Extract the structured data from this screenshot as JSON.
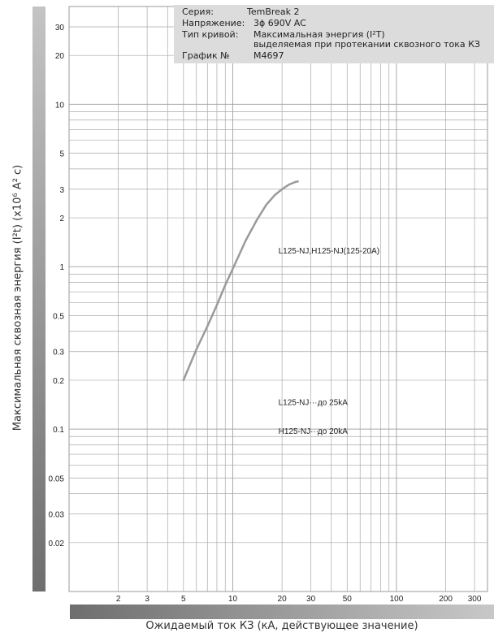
{
  "info": {
    "series_key": "Серия:",
    "series_val": "TemBreak 2",
    "voltage_key": "Напряжение:",
    "voltage_val": "3ϕ 690V  AC",
    "curve_key": "Тип кривой:",
    "curve_val1": "Максимальная энергия (I²T)",
    "curve_val2": "выделяемая при протекании сквозного тока КЗ",
    "graph_key": "График №",
    "graph_val": "M4697"
  },
  "chart_data": {
    "type": "line",
    "title": "",
    "xlabel": "Ожидаемый ток КЗ (кА, действующее значение)",
    "ylabel": "Максимальная сквозная энергия (I²t) (x10⁶ A² c)",
    "xscale": "log",
    "yscale": "log",
    "grid": true,
    "x_ticks": [
      "2",
      "3",
      "5",
      "10",
      "20",
      "30",
      "50",
      "100",
      "200",
      "300"
    ],
    "y_ticks": [
      "30",
      "20",
      "10",
      "5",
      "3",
      "2",
      "1",
      "0.5",
      "0.3",
      "0.2",
      "0.1",
      "0.05",
      "0.03",
      "0.02"
    ],
    "series": [
      {
        "name": "L125-NJ,H125-NJ(125-20A)",
        "color": "#9a9a9a",
        "x": [
          5,
          6,
          7,
          8,
          9,
          10,
          12,
          14,
          16,
          18,
          20,
          22,
          24,
          25
        ],
        "y": [
          0.2,
          0.31,
          0.43,
          0.58,
          0.77,
          0.97,
          1.45,
          1.93,
          2.4,
          2.75,
          3.0,
          3.2,
          3.32,
          3.35
        ]
      }
    ],
    "annotations": [
      {
        "model": "L125-NJ···",
        "limit": "до 25kA"
      },
      {
        "model": "H125-NJ···",
        "limit": "до 20kA"
      }
    ]
  }
}
